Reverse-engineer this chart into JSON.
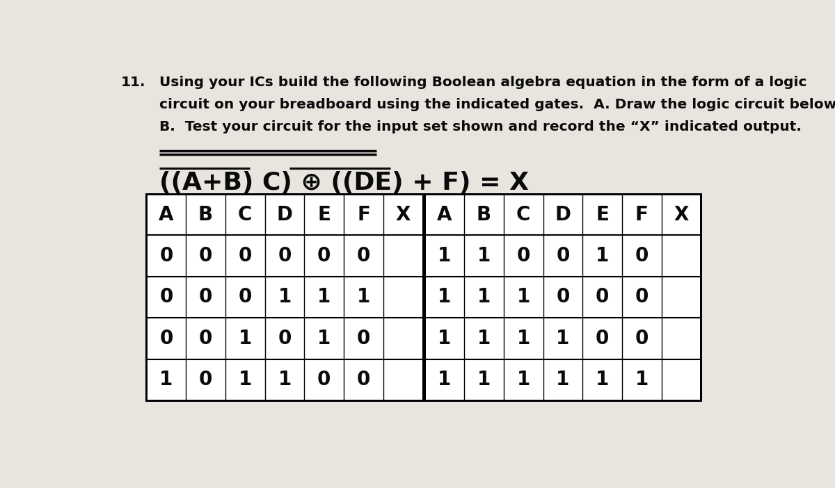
{
  "header_number": "11.",
  "header_line1": "Using your ICs build the following Boolean algebra equation in the form of a logic",
  "header_line2": "circuit on your breadboard using the indicated gates.  A. Draw the logic circuit below:",
  "header_line3": "B.  Test your circuit for the input set shown and record the “X” indicated output.",
  "left_table_headers": [
    "A",
    "B",
    "C",
    "D",
    "E",
    "F",
    "X"
  ],
  "left_table_rows": [
    [
      "0",
      "0",
      "0",
      "0",
      "0",
      "0",
      ""
    ],
    [
      "0",
      "0",
      "0",
      "1",
      "1",
      "1",
      ""
    ],
    [
      "0",
      "0",
      "1",
      "0",
      "1",
      "0",
      ""
    ],
    [
      "1",
      "0",
      "1",
      "1",
      "0",
      "0",
      ""
    ]
  ],
  "right_table_headers": [
    "A",
    "B",
    "C",
    "D",
    "E",
    "F",
    "X"
  ],
  "right_table_rows": [
    [
      "1",
      "1",
      "0",
      "0",
      "1",
      "0",
      ""
    ],
    [
      "1",
      "1",
      "1",
      "0",
      "0",
      "0",
      ""
    ],
    [
      "1",
      "1",
      "1",
      "1",
      "0",
      "0",
      ""
    ],
    [
      "1",
      "1",
      "1",
      "1",
      "1",
      "1",
      ""
    ]
  ],
  "bg_color": "#e8e4de",
  "table_bg": "#f0ede8",
  "text_color": "#0a0a0a",
  "font_size_header": 14.5,
  "font_size_equation": 26,
  "font_size_table": 20
}
